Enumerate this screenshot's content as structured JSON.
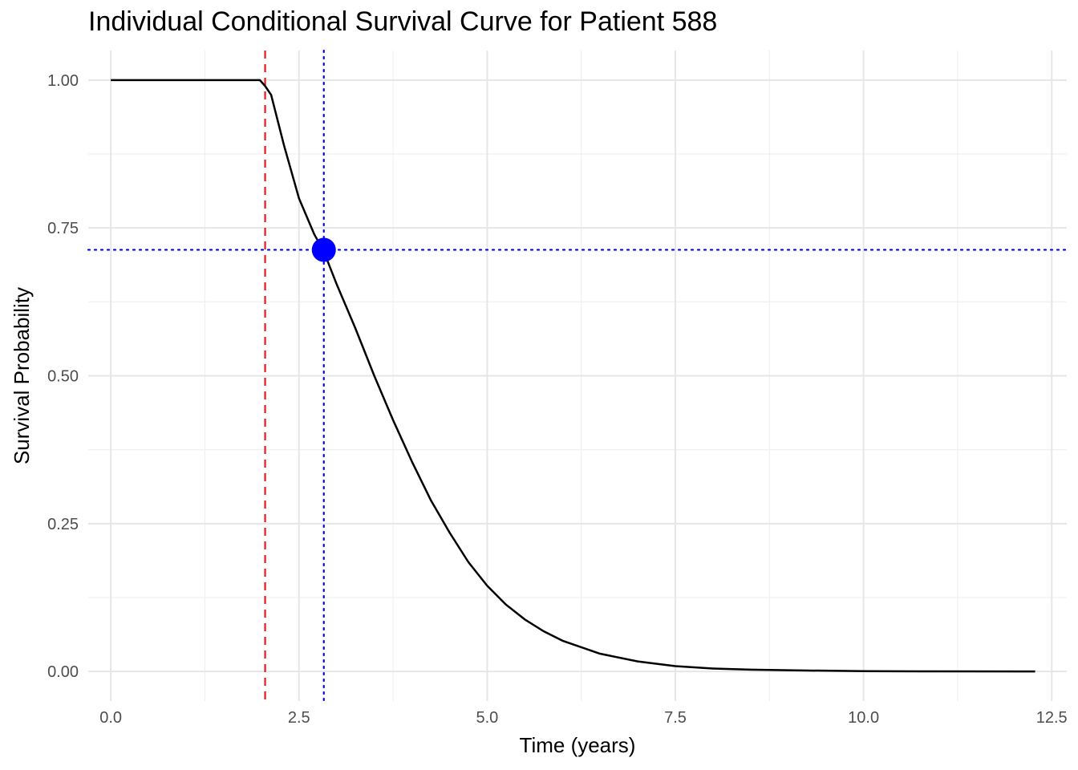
{
  "chart_data": {
    "type": "line",
    "title": "Individual Conditional Survival Curve for Patient 588",
    "xlabel": "Time (years)",
    "ylabel": "Survival Probability",
    "xlim": [
      -0.3,
      12.7
    ],
    "ylim": [
      -0.05,
      1.05
    ],
    "x_ticks": [
      0,
      2.5,
      5,
      7.5,
      10,
      12.5
    ],
    "x_tick_labels": [
      "0.0",
      "2.5",
      "5.0",
      "7.5",
      "10.0",
      "12.5"
    ],
    "y_ticks": [
      0,
      0.25,
      0.5,
      0.75,
      1.0
    ],
    "y_tick_labels": [
      "0.00",
      "0.25",
      "0.50",
      "0.75",
      "1.00"
    ],
    "grid": true,
    "series": [
      {
        "color": "#000000",
        "x": [
          0,
          1.98,
          2.05,
          2.13,
          2.3,
          2.5,
          2.7,
          2.83,
          3.0,
          3.25,
          3.5,
          3.75,
          4.0,
          4.25,
          4.5,
          4.75,
          5.0,
          5.25,
          5.5,
          5.75,
          6.0,
          6.5,
          7.0,
          7.5,
          8.0,
          8.5,
          9.0,
          10.0,
          11.0,
          12.28
        ],
        "y": [
          1.0,
          1.0,
          0.99,
          0.975,
          0.89,
          0.8,
          0.74,
          0.71,
          0.655,
          0.58,
          0.5,
          0.425,
          0.355,
          0.29,
          0.235,
          0.185,
          0.145,
          0.113,
          0.088,
          0.068,
          0.052,
          0.03,
          0.017,
          0.009,
          0.005,
          0.003,
          0.002,
          0.0005,
          0.0001,
          0.0
        ]
      }
    ],
    "reference_lines": {
      "landmark_vline": {
        "x": 2.05,
        "color": "#e41a1c",
        "style": "dashed"
      },
      "horizon_vline": {
        "x": 2.83,
        "color": "#0000ff",
        "style": "dotted"
      },
      "horizon_hline": {
        "y": 0.713,
        "color": "#0000ff",
        "style": "dotted"
      }
    },
    "highlight_point": {
      "x": 2.83,
      "y": 0.713,
      "color": "#0000ff"
    }
  }
}
